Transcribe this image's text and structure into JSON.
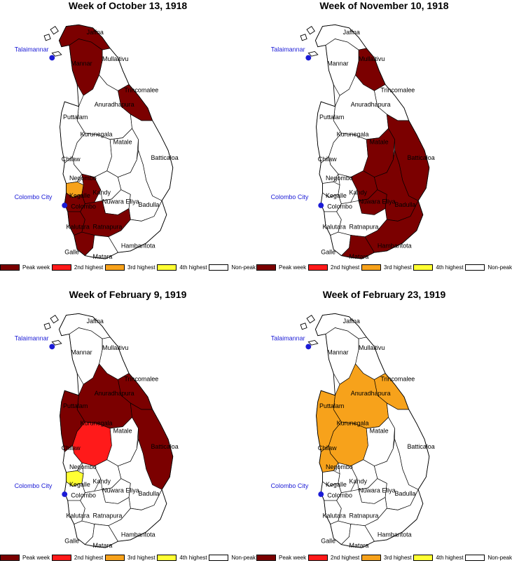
{
  "legend_labels": {
    "peak": "Peak  week",
    "second": "2nd highest",
    "third": "3rd highest",
    "fourth": "4th highest",
    "nonpeak": "Non-peak"
  },
  "colors": {
    "peak": "#7b0000",
    "second": "#ff1a1a",
    "third": "#f7a21b",
    "fourth": "#ffff33",
    "nonpeak": "#ffffff",
    "city": "#1b1bd6"
  },
  "place_labels": {
    "jaffna": "Jaffna",
    "mullaitivu": "Mullaitivu",
    "mannar": "Mannar",
    "trincomalee": "Trincomalee",
    "anuradhapura": "Anuradhapura",
    "puttalam": "Puttalam",
    "kurunegala": "Kurunegala",
    "matale": "Matale",
    "chilaw": "Chilaw",
    "batticaloa": "Batticaloa",
    "negombo": "Negombo",
    "kegalle": "Kegalle",
    "kandy": "Kandy",
    "nuwara_eliya": "Nuwara Eliya",
    "badulla": "Badulla",
    "colombo": "Colombo",
    "kalutara": "Kalutara",
    "ratnapura": "Ratnapura",
    "hambantota": "Hambantota",
    "galle": "Galle",
    "matara": "Matara"
  },
  "cities": {
    "talaimannar": "Talaimannar",
    "colombo_city": "Colombo City"
  },
  "panels": [
    {
      "title": "Week of October 13, 1918",
      "levels": {
        "jaffna": "peak",
        "mannar": "peak",
        "trincomalee": "peak",
        "negombo": "third",
        "colombo": "peak",
        "kegalle": "peak",
        "kalutara": "peak",
        "ratnapura": "peak",
        "galle": "peak"
      }
    },
    {
      "title": "Week of November 10, 1918",
      "levels": {
        "mullaitivu": "peak",
        "matale": "peak",
        "kandy": "peak",
        "nuwara_eliya": "peak",
        "badulla": "peak",
        "batticaloa": "peak",
        "hambantota": "peak",
        "matara": "peak"
      }
    },
    {
      "title": "Week of February 9, 1919",
      "levels": {
        "anuradhapura": "peak",
        "puttalam": "peak",
        "trincomalee": "peak",
        "batticaloa": "peak",
        "kurunegala": "second",
        "negombo": "fourth"
      }
    },
    {
      "title": "Week of February 23, 1919",
      "levels": {
        "anuradhapura": "third",
        "trincomalee": "third",
        "puttalam": "third",
        "kurunegala": "third",
        "chilaw": "third"
      }
    }
  ]
}
